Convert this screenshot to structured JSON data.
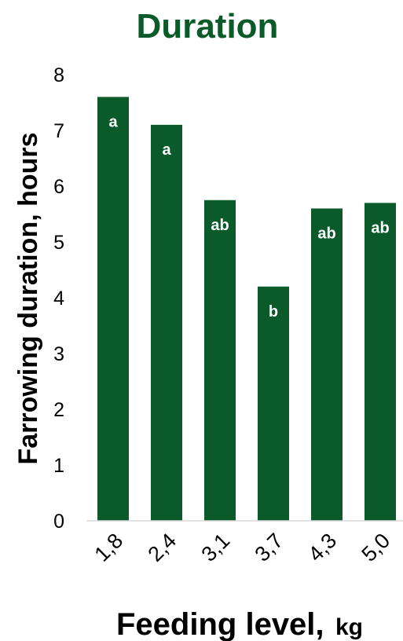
{
  "chart_data": {
    "type": "bar",
    "title": "Duration",
    "ylabel": "Farrowing duration, hours",
    "xlabel": "Feeding level,",
    "xlabel_unit": "kg",
    "categories": [
      "1,8",
      "2,4",
      "3,1",
      "3,7",
      "4,3",
      "5,0"
    ],
    "values": [
      7.6,
      7.1,
      5.75,
      4.2,
      5.6,
      5.7
    ],
    "letters": [
      "a",
      "a",
      "ab",
      "b",
      "ab",
      "ab"
    ],
    "ylim": [
      0,
      8
    ],
    "yticks": [
      "0",
      "1",
      "2",
      "3",
      "4",
      "5",
      "6",
      "7",
      "8"
    ],
    "grid": false,
    "bar_color": "#0b5a2a",
    "title_color": "#0b5a2a"
  }
}
